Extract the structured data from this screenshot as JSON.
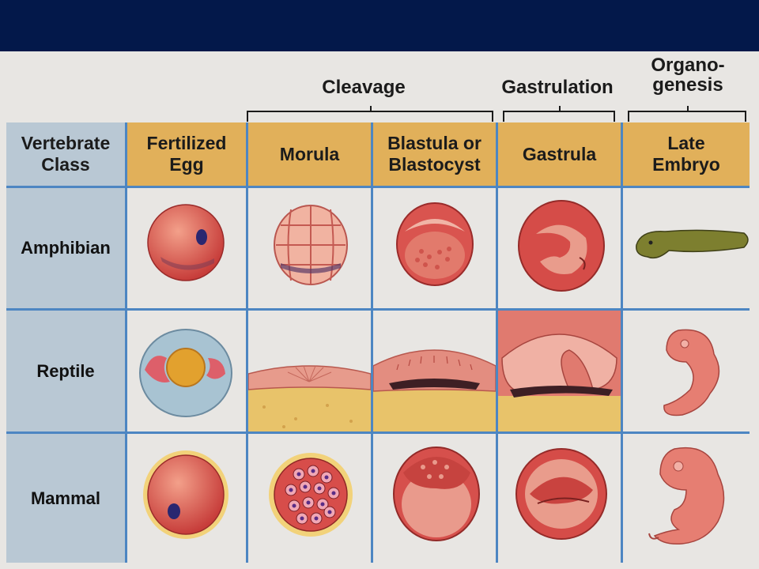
{
  "stage_groups": {
    "cleavage": "Cleavage",
    "gastrulation": "Gastrulation",
    "organogenesis_line1": "Organo-",
    "organogenesis_line2": "genesis"
  },
  "header": {
    "class_line1": "Vertebrate",
    "class_line2": "Class",
    "fertilized_line1": "Fertilized",
    "fertilized_line2": "Egg",
    "morula": "Morula",
    "blastula_line1": "Blastula or",
    "blastula_line2": "Blastocyst",
    "gastrula": "Gastrula",
    "late_line1": "Late",
    "late_line2": "Embryo"
  },
  "rows": [
    {
      "label": "Amphibian"
    },
    {
      "label": "Reptile"
    },
    {
      "label": "Mammal"
    }
  ],
  "colors": {
    "title_bar": "#03184a",
    "header_stage": "#e1b05a",
    "header_class": "#b9c8d4",
    "grid_line": "#4d86c2",
    "embryo_red": "#d9544f",
    "yolk": "#e8c36a"
  }
}
